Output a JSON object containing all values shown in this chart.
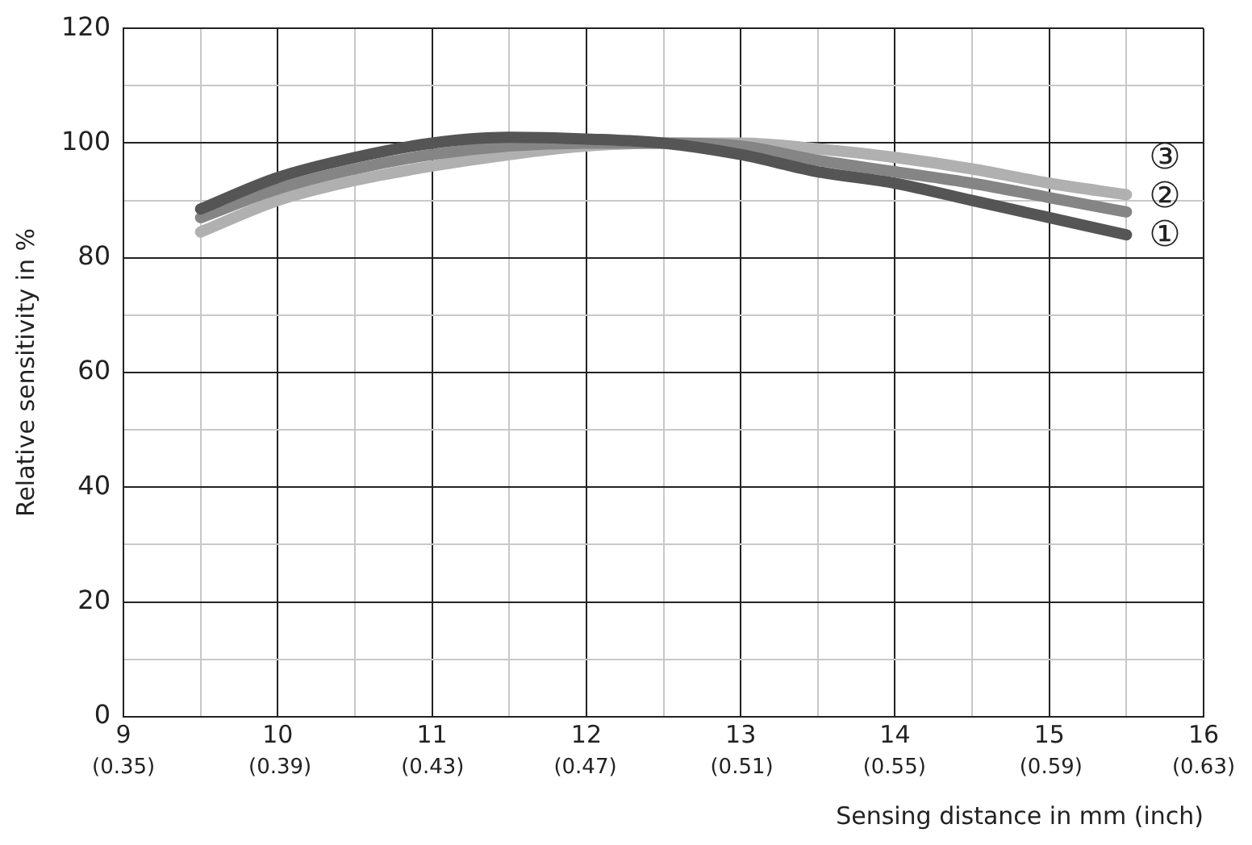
{
  "chart_data": {
    "type": "line",
    "xlabel": "Sensing distance in mm (inch)",
    "ylabel": "Relative sensitivity in %",
    "x": [
      9.5,
      10,
      10.5,
      11,
      11.5,
      12,
      12.5,
      13,
      13.5,
      14,
      14.5,
      15,
      15.5
    ],
    "series": [
      {
        "name": "①",
        "color": "#555555",
        "values": [
          88.5,
          94,
          97.5,
          100,
          101,
          100.7,
          100,
          98,
          95,
          93,
          90,
          87,
          84
        ]
      },
      {
        "name": "②",
        "color": "#858585",
        "values": [
          87,
          92,
          95.5,
          98,
          99.5,
          100,
          100,
          99.5,
          97,
          95,
          93,
          90.5,
          88
        ]
      },
      {
        "name": "③",
        "color": "#b0b0b0",
        "values": [
          84.5,
          90,
          93.5,
          96,
          98,
          99.5,
          100,
          100,
          99,
          97.5,
          95.5,
          93,
          91
        ]
      }
    ],
    "xlim": [
      9,
      16
    ],
    "ylim": [
      0,
      120
    ],
    "xticks": [
      9,
      {
        "value": 9.5,
        "label": null
      },
      10,
      {
        "value": 10.5,
        "label": null
      },
      11,
      {
        "value": 11.5,
        "label": null
      },
      12,
      {
        "value": 12.5,
        "label": null
      },
      13,
      {
        "value": 13.5,
        "label": null
      },
      14,
      {
        "value": 14.5,
        "label": null
      },
      15,
      {
        "value": 15.5,
        "label": null
      },
      16
    ],
    "x2lim": [
      0.354,
      0.63
    ],
    "x2ticks": [
      {
        "value": 0.354,
        "label": "(0.35)"
      },
      {
        "value": 0.394,
        "label": "(0.39)"
      },
      {
        "value": 0.433,
        "label": "(0.43)"
      },
      {
        "value": 0.472,
        "label": "(0.47)"
      },
      {
        "value": 0.512,
        "label": "(0.51)"
      },
      {
        "value": 0.551,
        "label": "(0.55)"
      },
      {
        "value": 0.591,
        "label": "(0.59)"
      },
      {
        "value": 0.63,
        "label": "(0.63)"
      }
    ],
    "yticks": [
      0,
      {
        "value": 10,
        "label": null
      },
      20,
      {
        "value": 30,
        "label": null
      },
      40,
      {
        "value": 50,
        "label": null
      },
      60,
      {
        "value": 70,
        "label": null
      },
      80,
      {
        "value": 90,
        "label": null
      },
      100,
      {
        "value": 110,
        "label": null
      },
      120
    ],
    "grid": true,
    "legend": false,
    "marker": "none",
    "line_style": "solid"
  }
}
